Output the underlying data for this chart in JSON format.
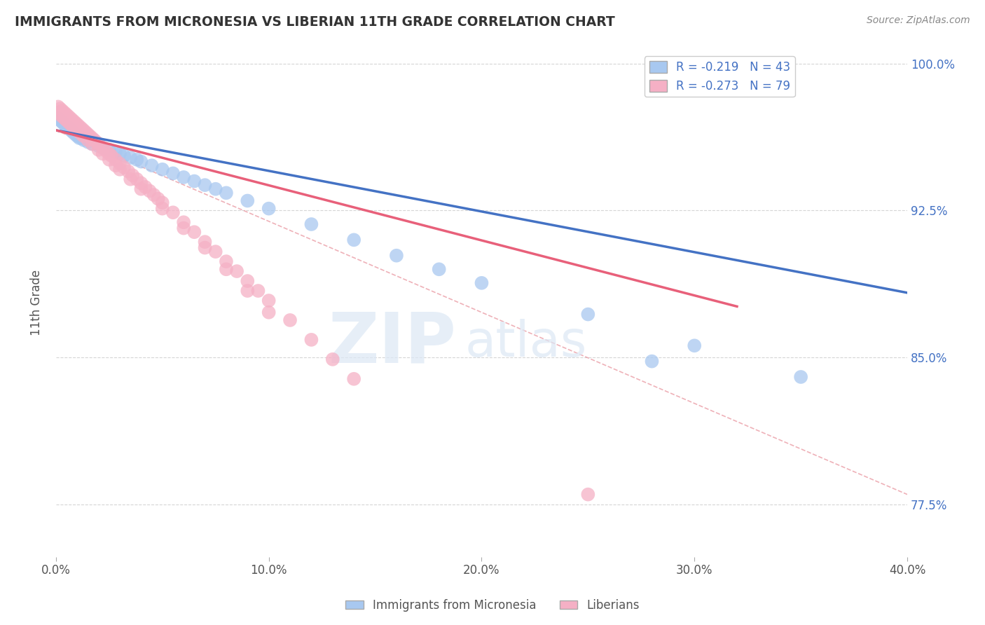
{
  "title": "IMMIGRANTS FROM MICRONESIA VS LIBERIAN 11TH GRADE CORRELATION CHART",
  "source_text": "Source: ZipAtlas.com",
  "ylabel": "11th Grade",
  "xlim": [
    0.0,
    0.4
  ],
  "ylim": [
    0.748,
    1.008
  ],
  "xtick_labels": [
    "0.0%",
    "10.0%",
    "20.0%",
    "30.0%",
    "40.0%"
  ],
  "xtick_values": [
    0.0,
    0.1,
    0.2,
    0.3,
    0.4
  ],
  "ytick_labels": [
    "77.5%",
    "85.0%",
    "92.5%",
    "100.0%"
  ],
  "ytick_values": [
    0.775,
    0.85,
    0.925,
    1.0
  ],
  "legend1_label": "R = -0.219   N = 43",
  "legend2_label": "R = -0.273   N = 79",
  "micronesia_color": "#a8c8f0",
  "liberian_color": "#f5b0c5",
  "trend_micronesia_color": "#4472c4",
  "trend_liberian_color": "#e8607a",
  "trend_dashed_color": "#e8909a",
  "micronesia_scatter_x": [
    0.001,
    0.002,
    0.003,
    0.004,
    0.005,
    0.006,
    0.007,
    0.008,
    0.009,
    0.01,
    0.011,
    0.012,
    0.013,
    0.015,
    0.017,
    0.02,
    0.022,
    0.025,
    0.028,
    0.03,
    0.032,
    0.035,
    0.038,
    0.04,
    0.045,
    0.05,
    0.055,
    0.06,
    0.065,
    0.07,
    0.075,
    0.08,
    0.09,
    0.1,
    0.12,
    0.14,
    0.16,
    0.18,
    0.2,
    0.25,
    0.3,
    0.35,
    0.28
  ],
  "micronesia_scatter_y": [
    0.972,
    0.971,
    0.97,
    0.969,
    0.968,
    0.967,
    0.966,
    0.965,
    0.964,
    0.963,
    0.962,
    0.962,
    0.961,
    0.96,
    0.959,
    0.958,
    0.957,
    0.956,
    0.955,
    0.954,
    0.953,
    0.952,
    0.951,
    0.95,
    0.948,
    0.946,
    0.944,
    0.942,
    0.94,
    0.938,
    0.936,
    0.934,
    0.93,
    0.926,
    0.918,
    0.91,
    0.902,
    0.895,
    0.888,
    0.872,
    0.856,
    0.84,
    0.848
  ],
  "liberian_scatter_x": [
    0.001,
    0.002,
    0.003,
    0.004,
    0.005,
    0.006,
    0.007,
    0.008,
    0.009,
    0.01,
    0.011,
    0.012,
    0.013,
    0.014,
    0.015,
    0.016,
    0.017,
    0.018,
    0.019,
    0.02,
    0.022,
    0.024,
    0.025,
    0.026,
    0.028,
    0.03,
    0.032,
    0.034,
    0.036,
    0.038,
    0.04,
    0.042,
    0.044,
    0.046,
    0.048,
    0.05,
    0.055,
    0.06,
    0.065,
    0.07,
    0.075,
    0.08,
    0.085,
    0.09,
    0.095,
    0.1,
    0.11,
    0.12,
    0.13,
    0.14,
    0.001,
    0.002,
    0.003,
    0.004,
    0.005,
    0.006,
    0.007,
    0.008,
    0.009,
    0.01,
    0.011,
    0.012,
    0.013,
    0.015,
    0.017,
    0.02,
    0.022,
    0.025,
    0.028,
    0.03,
    0.035,
    0.04,
    0.05,
    0.06,
    0.07,
    0.08,
    0.09,
    0.1,
    0.25
  ],
  "liberian_scatter_y": [
    0.978,
    0.977,
    0.976,
    0.975,
    0.974,
    0.973,
    0.972,
    0.971,
    0.97,
    0.969,
    0.968,
    0.967,
    0.966,
    0.965,
    0.964,
    0.963,
    0.962,
    0.961,
    0.96,
    0.959,
    0.957,
    0.955,
    0.954,
    0.953,
    0.951,
    0.949,
    0.947,
    0.945,
    0.943,
    0.941,
    0.939,
    0.937,
    0.935,
    0.933,
    0.931,
    0.929,
    0.924,
    0.919,
    0.914,
    0.909,
    0.904,
    0.899,
    0.894,
    0.889,
    0.884,
    0.879,
    0.869,
    0.859,
    0.849,
    0.839,
    0.975,
    0.974,
    0.973,
    0.972,
    0.971,
    0.97,
    0.969,
    0.968,
    0.967,
    0.966,
    0.965,
    0.964,
    0.963,
    0.961,
    0.959,
    0.956,
    0.954,
    0.951,
    0.948,
    0.946,
    0.941,
    0.936,
    0.926,
    0.916,
    0.906,
    0.895,
    0.884,
    0.873,
    0.78
  ],
  "micronesia_trend_x": [
    0.0,
    0.4
  ],
  "micronesia_trend_y": [
    0.966,
    0.883
  ],
  "liberian_trend_x": [
    0.0,
    0.32
  ],
  "liberian_trend_y": [
    0.966,
    0.876
  ],
  "dashed_trend_x": [
    0.0,
    0.4
  ],
  "dashed_trend_y": [
    0.966,
    0.78
  ],
  "watermark_zip": "ZIP",
  "watermark_atlas": "atlas"
}
